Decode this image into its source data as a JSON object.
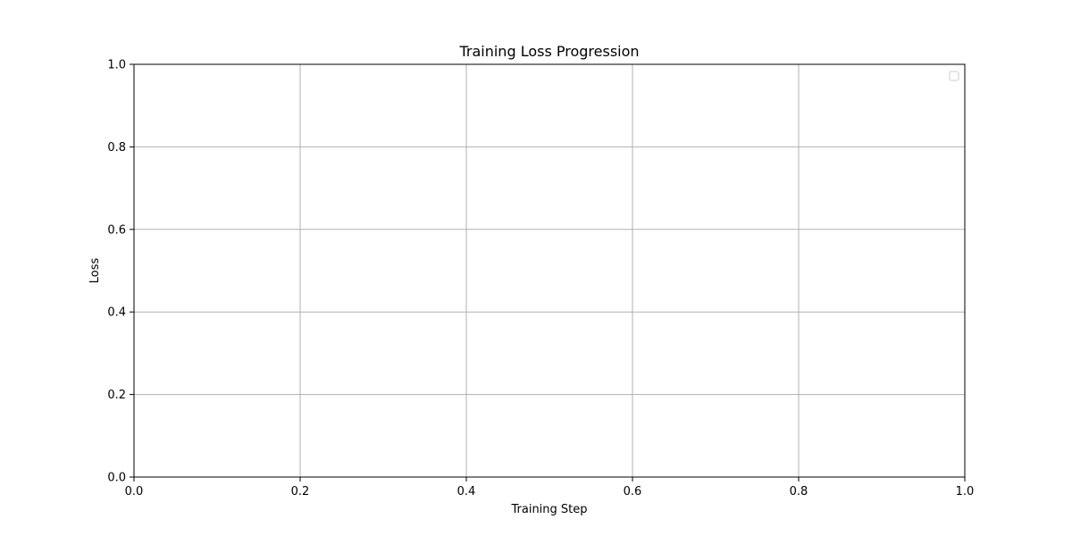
{
  "chart_data": {
    "type": "line",
    "title": "Training Loss Progression",
    "xlabel": "Training Step",
    "ylabel": "Loss",
    "xlim": [
      0.0,
      1.0
    ],
    "ylim": [
      0.0,
      1.0
    ],
    "x_ticks": [
      "0.0",
      "0.2",
      "0.4",
      "0.6",
      "0.8",
      "1.0"
    ],
    "y_ticks": [
      "0.0",
      "0.2",
      "0.4",
      "0.6",
      "0.8",
      "1.0"
    ],
    "grid": true,
    "legend": {
      "placement": "upper-right",
      "entries": []
    },
    "series": [],
    "colors": {
      "grid": "#b0b0b0",
      "axes": "#000000",
      "background": "#ffffff",
      "legend_border": "#cccccc"
    }
  }
}
